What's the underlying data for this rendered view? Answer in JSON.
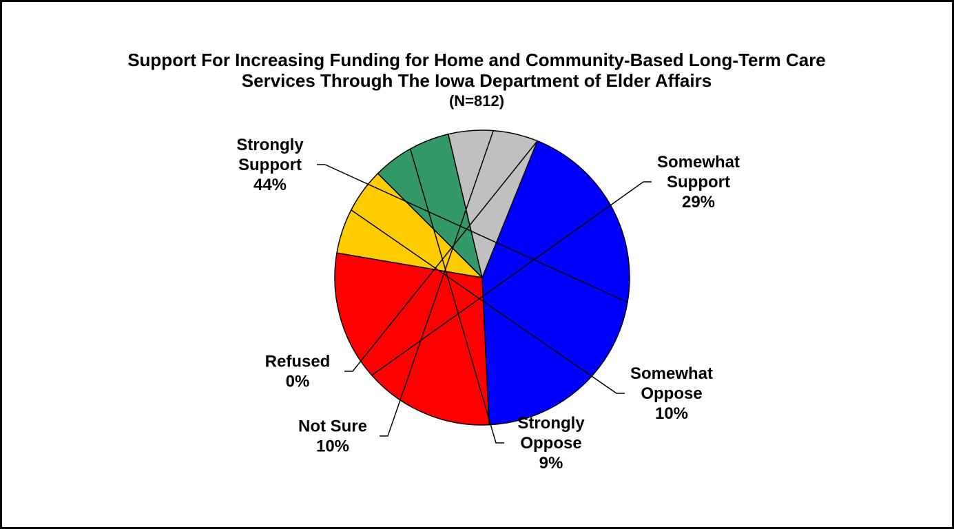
{
  "chart_data": {
    "type": "pie",
    "title_line1": "Support For Increasing Funding for Home and Community-Based Long-Term Care",
    "title_line2": "Services Through The Iowa Department of Elder Affairs",
    "subtitle": "(N=812)",
    "slices": [
      {
        "name": "Strongly Support",
        "label_lines": [
          "Strongly",
          "Support"
        ],
        "value": 44,
        "value_label": "44%",
        "color": "#0000ff"
      },
      {
        "name": "Somewhat Support",
        "label_lines": [
          "Somewhat",
          "Support"
        ],
        "value": 29,
        "value_label": "29%",
        "color": "#ff0000"
      },
      {
        "name": "Somewhat Oppose",
        "label_lines": [
          "Somewhat",
          "Oppose"
        ],
        "value": 10,
        "value_label": "10%",
        "color": "#ffcc00"
      },
      {
        "name": "Strongly Oppose",
        "label_lines": [
          "Strongly",
          "Oppose"
        ],
        "value": 9,
        "value_label": "9%",
        "color": "#339966"
      },
      {
        "name": "Not Sure",
        "label_lines": [
          "Not Sure"
        ],
        "value": 10,
        "value_label": "10%",
        "color": "#c0c0c0"
      },
      {
        "name": "Refused",
        "label_lines": [
          "Refused"
        ],
        "value": 0,
        "value_label": "0%",
        "color": "#ffffff"
      }
    ]
  }
}
